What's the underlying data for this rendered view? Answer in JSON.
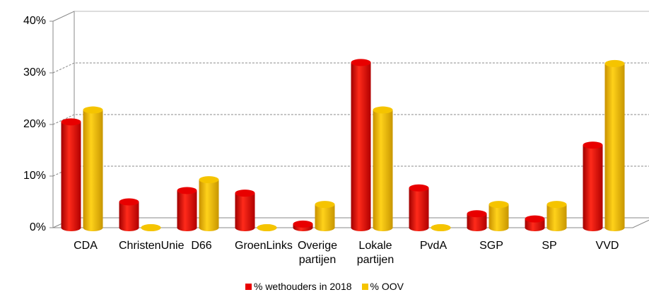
{
  "chart_data": {
    "type": "bar3d",
    "categories": [
      "CDA",
      "ChristenUnie",
      "D66",
      "GroenLinks",
      "Overige partijen",
      "Lokale partijen",
      "PvdA",
      "SGP",
      "SP",
      "VVD"
    ],
    "series": [
      {
        "name": "% wethouders in 2018",
        "color": "#e80000",
        "values": [
          20.5,
          5,
          7.2,
          6.7,
          0.7,
          32,
          7.7,
          2.7,
          1.7,
          16
        ]
      },
      {
        "name": "% OOV",
        "color": "#f5c400",
        "values": [
          22.8,
          0,
          9.3,
          0,
          4.5,
          22.8,
          0,
          4.5,
          4.5,
          31.8
        ]
      }
    ],
    "ylim": [
      0,
      40
    ],
    "yticks": [
      {
        "value": 0,
        "label": "0%"
      },
      {
        "value": 10,
        "label": "10%"
      },
      {
        "value": 20,
        "label": "20%"
      },
      {
        "value": 30,
        "label": "30%"
      },
      {
        "value": 40,
        "label": "40%"
      }
    ],
    "grid": true,
    "legend": "bottom"
  }
}
